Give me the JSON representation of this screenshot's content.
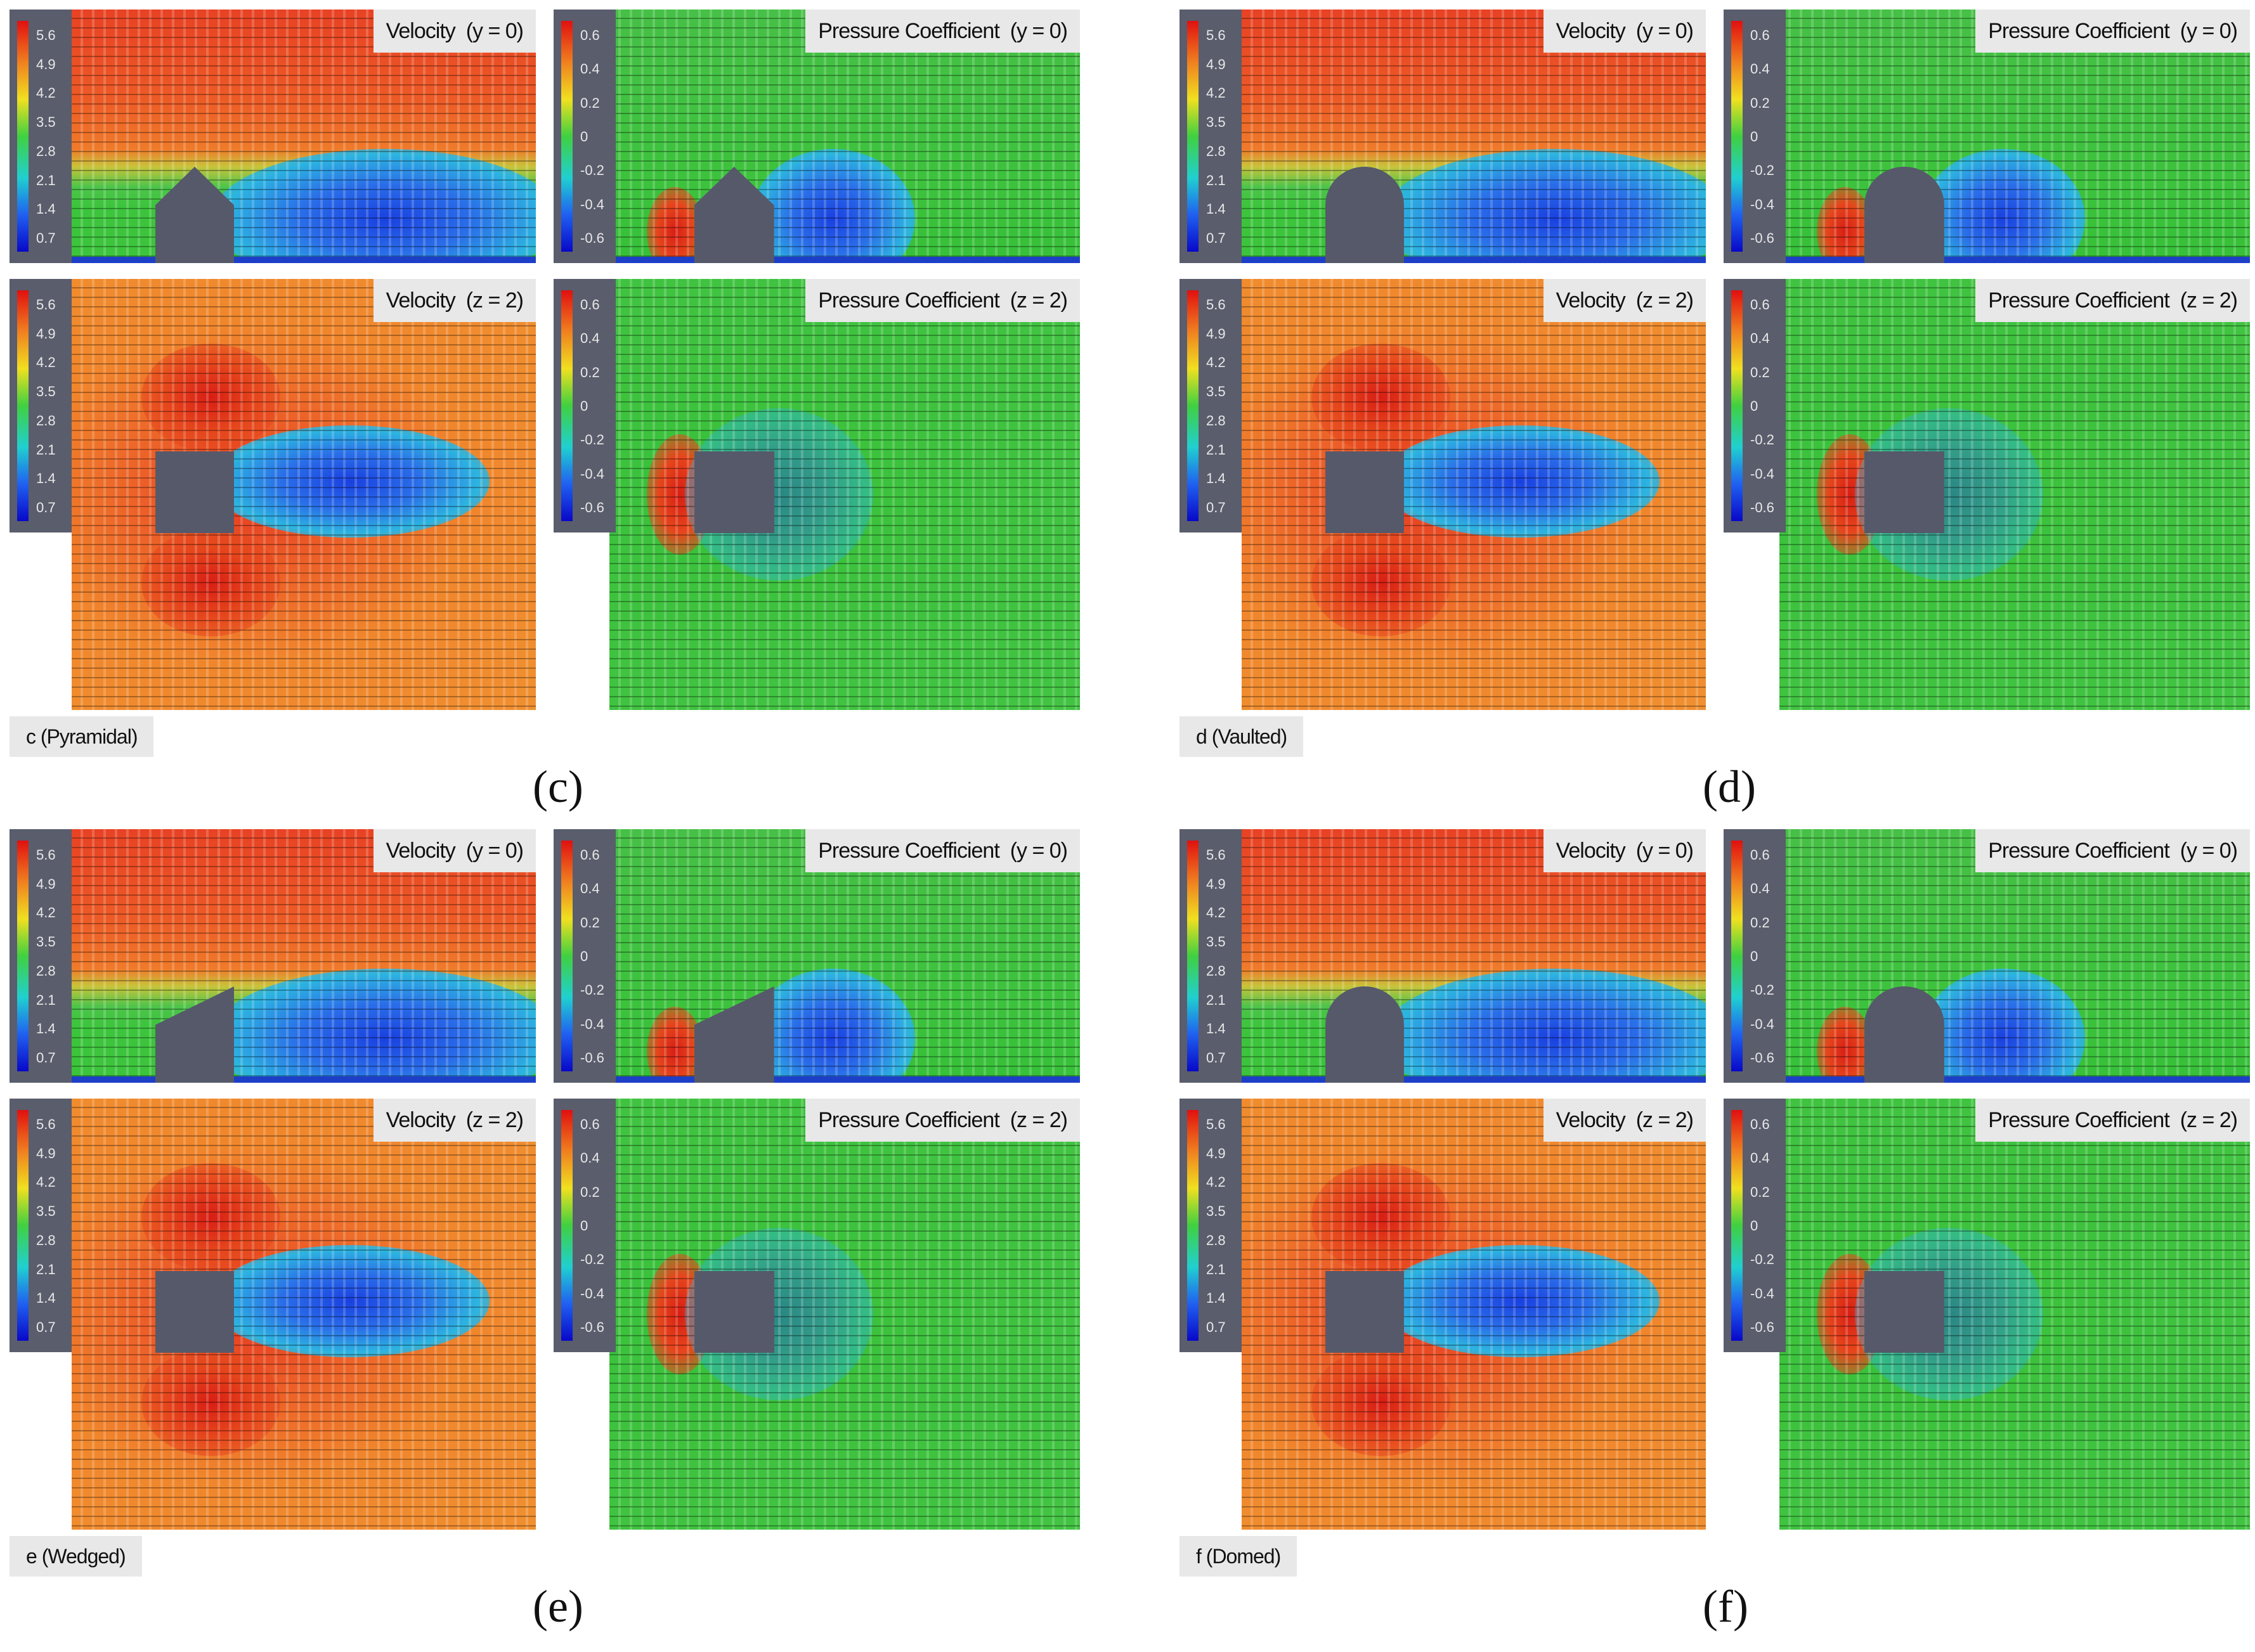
{
  "figure": {
    "velocity_ticks": [
      "5.6",
      "4.9",
      "4.2",
      "3.5",
      "2.8",
      "2.1",
      "1.4",
      "0.7"
    ],
    "pressure_ticks": [
      "0.6",
      "0.4",
      "0.2",
      "0",
      "-0.2",
      "-0.4",
      "-0.6"
    ],
    "velocity_colors": [
      "#e01010",
      "#f08020",
      "#f0e020",
      "#40d040",
      "#20d0d0",
      "#2060f0",
      "#0808c8"
    ],
    "quadrants": [
      {
        "subfigure_label": "(c)",
        "case_label": "c (Pyramidal)",
        "panels": [
          {
            "title_main": "Velocity",
            "title_plane": "(y = 0)"
          },
          {
            "title_main": "Pressure Coefficient",
            "title_plane": "(y = 0)"
          },
          {
            "title_main": "Velocity",
            "title_plane": "(z = 2)"
          },
          {
            "title_main": "Pressure Coefficient",
            "title_plane": "(z = 2)"
          }
        ]
      },
      {
        "subfigure_label": "(d)",
        "case_label": "d (Vaulted)",
        "panels": [
          {
            "title_main": "Velocity",
            "title_plane": "(y = 0)"
          },
          {
            "title_main": "Pressure Coefficient",
            "title_plane": "(y = 0)"
          },
          {
            "title_main": "Velocity",
            "title_plane": "(z = 2)"
          },
          {
            "title_main": "Pressure Coefficient",
            "title_plane": "(z = 2)"
          }
        ]
      },
      {
        "subfigure_label": "(e)",
        "case_label": "e (Wedged)",
        "panels": [
          {
            "title_main": "Velocity",
            "title_plane": "(y = 0)"
          },
          {
            "title_main": "Pressure Coefficient",
            "title_plane": "(y = 0)"
          },
          {
            "title_main": "Velocity",
            "title_plane": "(z = 2)"
          },
          {
            "title_main": "Pressure Coefficient",
            "title_plane": "(z = 2)"
          }
        ]
      },
      {
        "subfigure_label": "(f)",
        "case_label": "f (Domed)",
        "panels": [
          {
            "title_main": "Velocity",
            "title_plane": "(y = 0)"
          },
          {
            "title_main": "Pressure Coefficient",
            "title_plane": "(y = 0)"
          },
          {
            "title_main": "Velocity",
            "title_plane": "(z = 2)"
          },
          {
            "title_main": "Pressure Coefficient",
            "title_plane": "(z = 2)"
          }
        ]
      }
    ]
  }
}
